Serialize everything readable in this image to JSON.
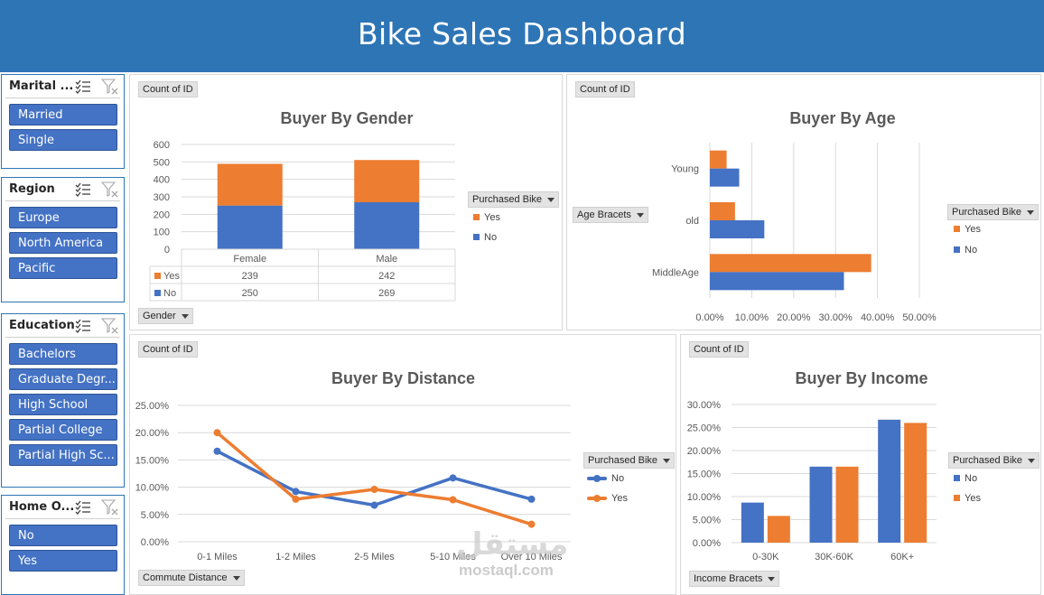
{
  "header": {
    "title": "Bike Sales Dashboard"
  },
  "slicers": {
    "marital": {
      "title": "Marital ...",
      "items": [
        "Married",
        "Single"
      ]
    },
    "region": {
      "title": "Region",
      "items": [
        "Europe",
        "North America",
        "Pacific"
      ]
    },
    "education": {
      "title": "Education",
      "items": [
        "Bachelors",
        "Graduate Degr...",
        "High School",
        "Partial College",
        "Partial High Sc..."
      ]
    },
    "home": {
      "title": "Home O...",
      "items": [
        "No",
        "Yes"
      ]
    }
  },
  "colors": {
    "blue": "#4472c4",
    "orange": "#ed7d31",
    "header": "#2e75b6"
  },
  "gender_panel": {
    "count_label": "Count of ID",
    "title": "Buyer By Gender",
    "axis_button": "Gender",
    "legend_title": "Purchased Bike",
    "legend": [
      "Yes",
      "No"
    ],
    "table_rows": [
      {
        "label": "Yes",
        "values": [
          "239",
          "242"
        ]
      },
      {
        "label": "No",
        "values": [
          "250",
          "269"
        ]
      }
    ]
  },
  "age_panel": {
    "count_label": "Count of ID",
    "title": "Buyer By Age",
    "axis_button": "Age Bracets",
    "legend_title": "Purchased Bike",
    "legend": [
      "Yes",
      "No"
    ]
  },
  "distance_panel": {
    "count_label": "Count of ID",
    "title": "Buyer By Distance",
    "axis_button": "Commute Distance",
    "legend_title": "Purchased Bike",
    "legend": [
      "No",
      "Yes"
    ]
  },
  "income_panel": {
    "count_label": "Count of ID",
    "title": "Buyer By Income",
    "axis_button": "Income Bracets",
    "legend_title": "Purchased Bike",
    "legend": [
      "No",
      "Yes"
    ]
  },
  "watermark": {
    "main": "مستقل",
    "sub": "mostaql.com"
  },
  "chart_data": [
    {
      "type": "bar",
      "title": "Buyer By Gender",
      "stacked": true,
      "categories": [
        "Female",
        "Male"
      ],
      "series": [
        {
          "name": "No",
          "values": [
            250,
            269
          ]
        },
        {
          "name": "Yes",
          "values": [
            239,
            242
          ]
        }
      ],
      "ylim": [
        0,
        600
      ],
      "yticks": [
        "600",
        "500",
        "400",
        "300",
        "200",
        "100",
        "0"
      ],
      "grid": true,
      "legend": "right"
    },
    {
      "type": "bar",
      "orientation": "horizontal",
      "title": "Buyer By Age",
      "categories": [
        "Young",
        "old",
        "MiddleAge"
      ],
      "series": [
        {
          "name": "Yes",
          "values": [
            0.04,
            0.06,
            0.385
          ]
        },
        {
          "name": "No",
          "values": [
            0.07,
            0.13,
            0.32
          ]
        }
      ],
      "xlim": [
        0,
        0.5
      ],
      "xticks": [
        "0.00%",
        "10.00%",
        "20.00%",
        "30.00%",
        "40.00%",
        "50.00%"
      ],
      "grid": true,
      "legend": "right"
    },
    {
      "type": "line",
      "title": "Buyer By Distance",
      "categories": [
        "0-1 Miles",
        "1-2 Miles",
        "2-5 Miles",
        "5-10 Miles",
        "Over 10 Miles"
      ],
      "series": [
        {
          "name": "No",
          "values": [
            0.166,
            0.092,
            0.067,
            0.117,
            0.078
          ]
        },
        {
          "name": "Yes",
          "values": [
            0.2,
            0.078,
            0.096,
            0.077,
            0.032
          ]
        }
      ],
      "ylim": [
        0,
        0.25
      ],
      "yticks": [
        "25.00%",
        "20.00%",
        "15.00%",
        "10.00%",
        "5.00%",
        "0.00%"
      ],
      "grid": true,
      "legend": "right"
    },
    {
      "type": "bar",
      "title": "Buyer By Income",
      "categories": [
        "0-30K",
        "30K-60K",
        "60K+"
      ],
      "series": [
        {
          "name": "No",
          "values": [
            0.087,
            0.165,
            0.267
          ]
        },
        {
          "name": "Yes",
          "values": [
            0.058,
            0.165,
            0.26
          ]
        }
      ],
      "ylim": [
        0,
        0.3
      ],
      "yticks": [
        "30.00%",
        "25.00%",
        "20.00%",
        "15.00%",
        "10.00%",
        "5.00%",
        "0.00%"
      ],
      "grid": true,
      "legend": "right"
    }
  ]
}
